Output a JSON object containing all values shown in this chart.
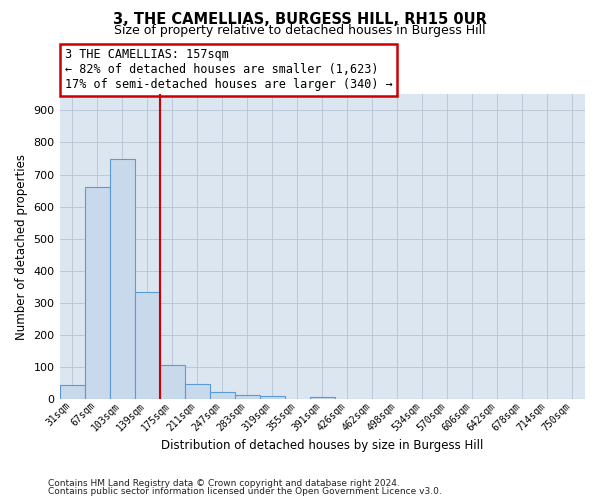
{
  "title": "3, THE CAMELLIAS, BURGESS HILL, RH15 0UR",
  "subtitle": "Size of property relative to detached houses in Burgess Hill",
  "xlabel": "Distribution of detached houses by size in Burgess Hill",
  "ylabel": "Number of detached properties",
  "footnote1": "Contains HM Land Registry data © Crown copyright and database right 2024.",
  "footnote2": "Contains public sector information licensed under the Open Government Licence v3.0.",
  "bar_labels": [
    "31sqm",
    "67sqm",
    "103sqm",
    "139sqm",
    "175sqm",
    "211sqm",
    "247sqm",
    "283sqm",
    "319sqm",
    "355sqm",
    "391sqm",
    "426sqm",
    "462sqm",
    "498sqm",
    "534sqm",
    "570sqm",
    "606sqm",
    "642sqm",
    "678sqm",
    "714sqm",
    "750sqm"
  ],
  "bar_values": [
    45,
    660,
    750,
    335,
    105,
    48,
    22,
    14,
    10,
    0,
    6,
    0,
    0,
    0,
    0,
    0,
    0,
    0,
    0,
    0,
    0
  ],
  "bar_color": "#c9d9ec",
  "bar_edgecolor": "#5b9bd5",
  "vline_x": 3.5,
  "vline_color": "#cc0000",
  "annotation_line1": "3 THE CAMELLIAS: 157sqm",
  "annotation_line2": "← 82% of detached houses are smaller (1,623)",
  "annotation_line3": "17% of semi-detached houses are larger (340) →",
  "annotation_box_edgecolor": "#cc0000",
  "ylim": [
    0,
    950
  ],
  "yticks": [
    0,
    100,
    200,
    300,
    400,
    500,
    600,
    700,
    800,
    900
  ],
  "grid_color": "#b8c4d4",
  "background_color": "#dce6f1",
  "figsize": [
    6.0,
    5.0
  ],
  "dpi": 100
}
